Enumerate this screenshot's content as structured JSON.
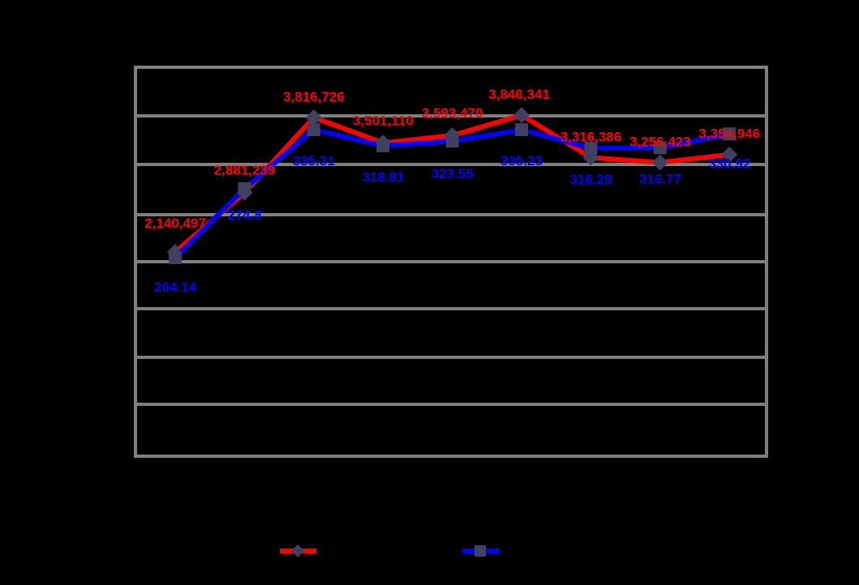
{
  "chart_data": {
    "type": "line",
    "categories": [
      "",
      "",
      "",
      "",
      "",
      "",
      "",
      "",
      ""
    ],
    "series": [
      {
        "color": "#ff0000",
        "marker": "diamond",
        "values": [
          2140497,
          2881239,
          3816726,
          3501110,
          3593470,
          3846341,
          3316386,
          3256423,
          3354946
        ],
        "labels": [
          "2,140,497",
          "2,881,239",
          "3,816,726",
          "3,501,110",
          "3,593,470",
          "3,846,341",
          "3,316,386",
          "3,256,423",
          "3,354,946"
        ]
      },
      {
        "color": "#0000ff",
        "marker": "square",
        "values": [
          204.14,
          274.8,
          335.31,
          318.81,
          323.55,
          335.23,
          316.29,
          316.77,
          330.92
        ],
        "labels": [
          "204.14",
          "274.8",
          "335.31",
          "318.81",
          "323.55",
          "335.23",
          "316.29",
          "316.77",
          "330.92"
        ]
      }
    ],
    "grid": true,
    "plot_background": "#000000",
    "gridline_color": "#808080",
    "marker_color": "#404060",
    "legend_position": "bottom"
  }
}
